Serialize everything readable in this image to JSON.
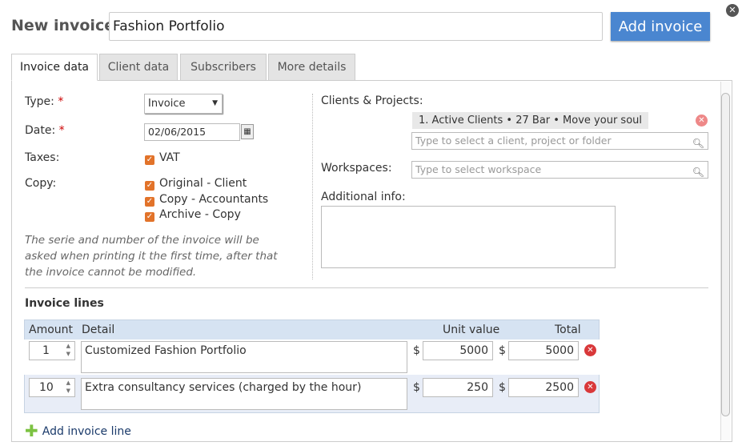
{
  "dialog": {
    "title": "New invoice",
    "name_value": "Fashion Portfolio",
    "add_button": "Add invoice",
    "close_icon": "close-icon"
  },
  "tabs": [
    {
      "label": "Invoice data",
      "active": true
    },
    {
      "label": "Client data"
    },
    {
      "label": "Subscribers"
    },
    {
      "label": "More details"
    }
  ],
  "form": {
    "type_label": "Type:",
    "type_value": "Invoice",
    "date_label": "Date:",
    "date_value": "02/06/2015",
    "taxes_label": "Taxes:",
    "taxes": [
      {
        "label": "VAT",
        "checked": true
      }
    ],
    "copy_label": "Copy:",
    "copies": [
      {
        "label": "Original - Client",
        "checked": true
      },
      {
        "label": "Copy - Accountants",
        "checked": true
      },
      {
        "label": "Archive - Copy",
        "checked": true
      }
    ],
    "note": "The serie and number of the invoice will be asked when printing it the first time, after that the invoice cannot be modified.",
    "required_mark": "*",
    "clients_label": "Clients & Projects:",
    "client_tag": "1. Active Clients • 27 Bar • Move your soul",
    "client_placeholder": "Type to select a client, project or folder",
    "workspaces_label": "Workspaces:",
    "workspace_placeholder": "Type to select workspace",
    "additional_label": "Additional info:",
    "additional_value": ""
  },
  "lines": {
    "title": "Invoice lines",
    "headers": {
      "amount": "Amount",
      "detail": "Detail",
      "unit": "Unit value",
      "total": "Total"
    },
    "currency": "$",
    "rows": [
      {
        "amount": "1",
        "detail": "Customized Fashion Portfolio",
        "unit": "5000",
        "total": "5000"
      },
      {
        "amount": "10",
        "detail": "Extra consultancy services (charged by the hour)",
        "unit": "250",
        "total": "2500"
      }
    ],
    "add_label": "Add invoice line"
  },
  "colors": {
    "accent": "#4a86d0",
    "checkbox": "#e2732a",
    "delete": "#d9383a",
    "add": "#7cc242"
  }
}
